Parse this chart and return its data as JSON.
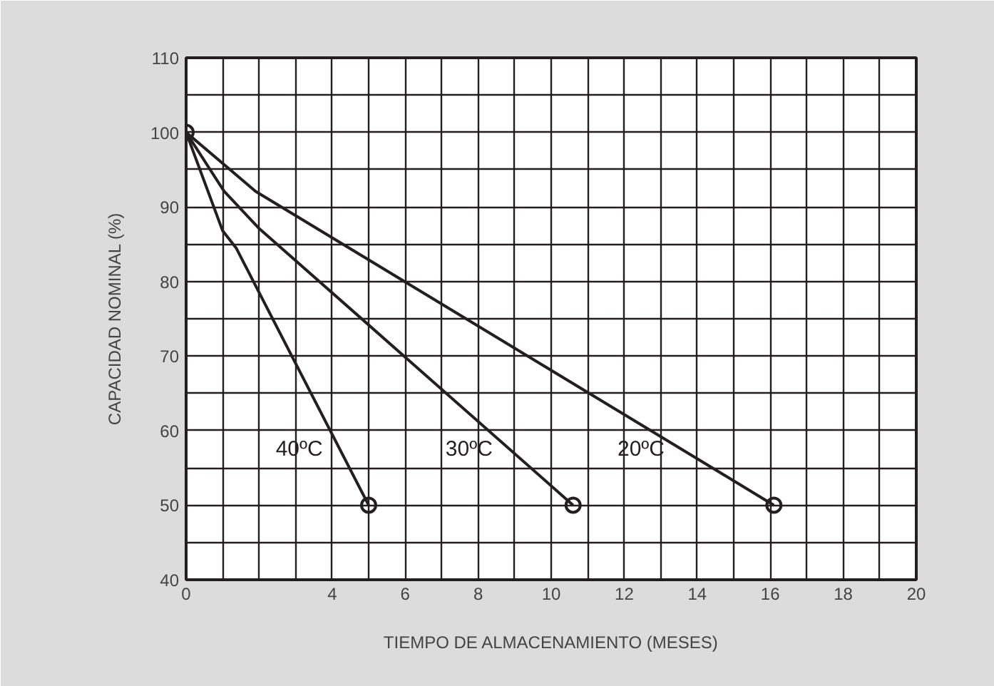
{
  "chart_data": {
    "type": "line",
    "xlabel": "TIEMPO DE ALMACENAMIENTO (MESES)",
    "ylabel": "CAPACIDAD NOMINAL (%)",
    "xlim": [
      0,
      20
    ],
    "ylim": [
      40,
      110
    ],
    "xticks": [
      0,
      {
        "value": 1,
        "label": null
      },
      {
        "value": 2,
        "label": null
      },
      {
        "value": 3,
        "label": null
      },
      4,
      {
        "value": 5,
        "label": null
      },
      6,
      {
        "value": 7,
        "label": null
      },
      8,
      {
        "value": 9,
        "label": null
      },
      10,
      {
        "value": 11,
        "label": null
      },
      12,
      {
        "value": 13,
        "label": null
      },
      14,
      {
        "value": 15,
        "label": null
      },
      16,
      {
        "value": 17,
        "label": null
      },
      18,
      {
        "value": 19,
        "label": null
      },
      20
    ],
    "yticks": [
      40,
      {
        "value": 45,
        "label": null
      },
      50,
      {
        "value": 55,
        "label": null
      },
      60,
      {
        "value": 65,
        "label": null
      },
      70,
      {
        "value": 75,
        "label": null
      },
      80,
      {
        "value": 85,
        "label": null
      },
      90,
      {
        "value": 95,
        "label": null
      },
      100,
      {
        "value": 105,
        "label": null
      },
      110
    ],
    "grid": true,
    "marker": "none",
    "line_style": "solid",
    "series": [
      {
        "name": "40ºC",
        "color": "#231f20",
        "x": [
          0,
          1.0,
          1.37,
          5.0
        ],
        "values": [
          100,
          86.8,
          84.5,
          50
        ]
      },
      {
        "name": "30ºC",
        "color": "#231f20",
        "x": [
          0,
          1.04,
          1.98,
          10.6
        ],
        "values": [
          100,
          92.1,
          87.2,
          50
        ]
      },
      {
        "name": "20ºC",
        "color": "#231f20",
        "x": [
          0,
          1.9,
          16.1
        ],
        "values": [
          100,
          92.1,
          50
        ]
      },
      {
        "type": "scatter",
        "marker": "circle",
        "color": "#231f20",
        "x": [
          0,
          5.0,
          10.6,
          16.1
        ],
        "values": [
          100,
          50,
          50,
          50
        ]
      }
    ]
  }
}
